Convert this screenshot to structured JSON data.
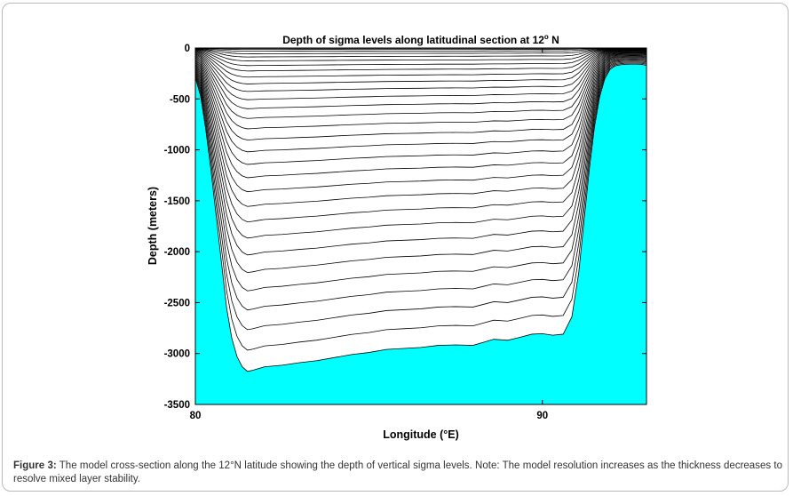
{
  "chart_data": {
    "type": "line",
    "title": "Depth of sigma levels along latitudinal section at 12",
    "title_degree": "o",
    "title_suffix": " N",
    "xlabel": "Longitude (°E)",
    "ylabel": "Depth (meters)",
    "xlim": [
      80,
      93
    ],
    "ylim": [
      -3500,
      0
    ],
    "x_ticks": [
      80,
      90
    ],
    "x_tick_labels": [
      "80",
      "90"
    ],
    "y_ticks": [
      0,
      -500,
      -1000,
      -1500,
      -2000,
      -2500,
      -3000,
      -3500
    ],
    "y_tick_labels": [
      "0",
      "-500",
      "-1000",
      "-1500",
      "-2000",
      "-2500",
      "-3000",
      "-3500"
    ],
    "grid": false,
    "sigma_levels": 30,
    "land_color": "#00ffff",
    "line_color": "#000000",
    "bathymetry": {
      "x": [
        80.0,
        80.15,
        80.3,
        80.45,
        80.6,
        80.75,
        80.9,
        81.05,
        81.2,
        81.35,
        81.5,
        81.65,
        81.8,
        82.0,
        82.5,
        83.0,
        83.5,
        84.0,
        84.5,
        85.0,
        85.5,
        86.0,
        86.5,
        87.0,
        87.5,
        88.0,
        88.3,
        88.6,
        89.0,
        89.3,
        89.7,
        90.0,
        90.3,
        90.6,
        90.85,
        91.05,
        91.2,
        91.35,
        91.5,
        91.65,
        91.8,
        91.95,
        92.1,
        92.25,
        92.4,
        92.55,
        92.7,
        92.85,
        93.0
      ],
      "depth": [
        -290,
        -470,
        -800,
        -1200,
        -1650,
        -2100,
        -2550,
        -2850,
        -3030,
        -3130,
        -3175,
        -3165,
        -3150,
        -3130,
        -3115,
        -3090,
        -3070,
        -3040,
        -3010,
        -2990,
        -2960,
        -2950,
        -2940,
        -2920,
        -2915,
        -2920,
        -2890,
        -2860,
        -2870,
        -2845,
        -2810,
        -2805,
        -2820,
        -2810,
        -2640,
        -2200,
        -1700,
        -1200,
        -780,
        -480,
        -300,
        -210,
        -175,
        -165,
        -160,
        -158,
        -158,
        -160,
        -170
      ]
    }
  },
  "caption": {
    "label": "Figure 3:",
    "text": " The model cross-section along the 12°N latitude showing the depth of vertical sigma levels. Note: The model resolution increases as the thickness decreases to resolve mixed layer stability."
  }
}
